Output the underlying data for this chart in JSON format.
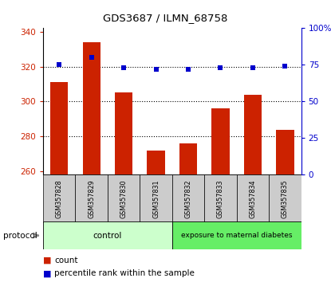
{
  "title": "GDS3687 / ILMN_68758",
  "samples": [
    "GSM357828",
    "GSM357829",
    "GSM357830",
    "GSM357831",
    "GSM357832",
    "GSM357833",
    "GSM357834",
    "GSM357835"
  ],
  "counts": [
    311,
    334,
    305,
    272,
    276,
    296,
    304,
    284
  ],
  "percentile_ranks": [
    75,
    80,
    73,
    72,
    72,
    73,
    73,
    74
  ],
  "ylim_left": [
    258,
    342
  ],
  "ylim_right": [
    0,
    100
  ],
  "yticks_left": [
    260,
    280,
    300,
    320,
    340
  ],
  "yticks_right": [
    0,
    25,
    50,
    75,
    100
  ],
  "ytick_labels_right": [
    "0",
    "25",
    "50",
    "75",
    "100%"
  ],
  "bar_color": "#cc2200",
  "dot_color": "#0000cc",
  "bar_width": 0.55,
  "grid_color": "black",
  "n_control": 4,
  "n_diabetes": 4,
  "control_label": "control",
  "diabetes_label": "exposure to maternal diabetes",
  "protocol_label": "protocol",
  "legend_count_label": "count",
  "legend_percentile_label": "percentile rank within the sample",
  "control_color": "#ccffcc",
  "diabetes_color": "#66ee66",
  "bar_label_color": "#cc2200",
  "dot_label_color": "#0000cc",
  "background_color": "#ffffff",
  "sample_cell_color": "#cccccc"
}
